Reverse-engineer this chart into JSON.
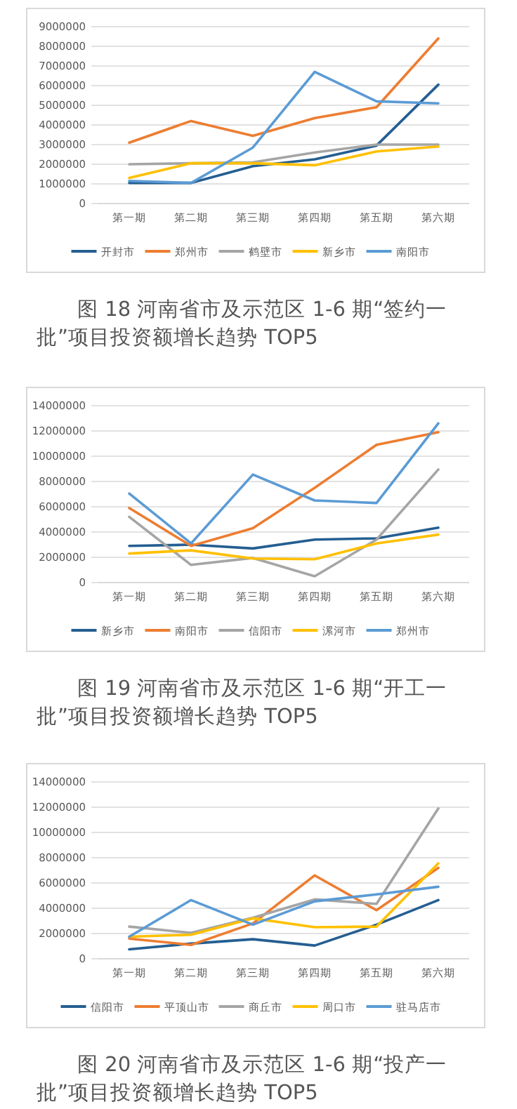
{
  "chart_data": [
    {
      "type": "line",
      "title": "图 18 河南省市及示范区 1-6 期“签约一批”项目投资额增长趋势 TOP5",
      "categories": [
        "第一期",
        "第二期",
        "第三期",
        "第四期",
        "第五期",
        "第六期"
      ],
      "ylim": [
        0,
        9000000
      ],
      "yticks": [
        0,
        1000000,
        2000000,
        3000000,
        4000000,
        5000000,
        6000000,
        7000000,
        8000000,
        9000000
      ],
      "grid": "y",
      "legend": "bottom",
      "marker": "none",
      "series": [
        {
          "name": "开封市",
          "color": "#255e91",
          "values": [
            1050000,
            1050000,
            1900000,
            2250000,
            2950000,
            6050000
          ]
        },
        {
          "name": "郑州市",
          "color": "#ed7d31",
          "values": [
            3100000,
            4200000,
            3450000,
            4350000,
            4900000,
            8400000
          ]
        },
        {
          "name": "鹤壁市",
          "color": "#a5a5a5",
          "values": [
            2000000,
            2050000,
            2100000,
            2600000,
            3000000,
            3000000
          ]
        },
        {
          "name": "新乡市",
          "color": "#ffc000",
          "values": [
            1300000,
            2050000,
            2050000,
            1950000,
            2650000,
            2900000
          ]
        },
        {
          "name": "南阳市",
          "color": "#5b9bd5",
          "values": [
            1150000,
            1050000,
            2850000,
            6700000,
            5200000,
            5100000
          ]
        }
      ]
    },
    {
      "type": "line",
      "title": "图 19 河南省市及示范区 1-6 期“开工一批”项目投资额增长趋势 TOP5",
      "categories": [
        "第一期",
        "第二期",
        "第三期",
        "第四期",
        "第五期",
        "第六期"
      ],
      "ylim": [
        0,
        14000000
      ],
      "yticks": [
        0,
        2000000,
        4000000,
        6000000,
        8000000,
        10000000,
        12000000,
        14000000
      ],
      "grid": "y",
      "legend": "bottom",
      "marker": "none",
      "series": [
        {
          "name": "新乡市",
          "color": "#255e91",
          "values": [
            2900000,
            3000000,
            2700000,
            3400000,
            3500000,
            4350000
          ]
        },
        {
          "name": "南阳市",
          "color": "#ed7d31",
          "values": [
            5900000,
            2900000,
            4300000,
            7500000,
            10900000,
            11900000
          ]
        },
        {
          "name": "信阳市",
          "color": "#a5a5a5",
          "values": [
            5200000,
            1400000,
            1950000,
            500000,
            3400000,
            8950000
          ]
        },
        {
          "name": "漯河市",
          "color": "#ffc000",
          "values": [
            2300000,
            2550000,
            1900000,
            1850000,
            3100000,
            3800000
          ]
        },
        {
          "name": "郑州市",
          "color": "#5b9bd5",
          "values": [
            7050000,
            3100000,
            8550000,
            6500000,
            6300000,
            12600000
          ]
        }
      ]
    },
    {
      "type": "line",
      "title": "图 20 河南省市及示范区 1-6 期“投产一批”项目投资额增长趋势 TOP5",
      "categories": [
        "第一期",
        "第二期",
        "第三期",
        "第四期",
        "第五期",
        "第六期"
      ],
      "ylim": [
        0,
        14000000
      ],
      "yticks": [
        0,
        2000000,
        4000000,
        6000000,
        8000000,
        10000000,
        12000000,
        14000000
      ],
      "grid": "y",
      "legend": "bottom",
      "marker": "none",
      "series": [
        {
          "name": "信阳市",
          "color": "#255e91",
          "values": [
            750000,
            1200000,
            1550000,
            1050000,
            2700000,
            4650000
          ]
        },
        {
          "name": "平顶山市",
          "color": "#ed7d31",
          "values": [
            1600000,
            1100000,
            2800000,
            6600000,
            3850000,
            7200000
          ]
        },
        {
          "name": "商丘市",
          "color": "#a5a5a5",
          "values": [
            2550000,
            2050000,
            3250000,
            4700000,
            4350000,
            11900000
          ]
        },
        {
          "name": "周口市",
          "color": "#ffc000",
          "values": [
            1750000,
            1900000,
            3200000,
            2500000,
            2550000,
            7550000
          ]
        },
        {
          "name": "驻马店市",
          "color": "#5b9bd5",
          "values": [
            1750000,
            4650000,
            2700000,
            4550000,
            5100000,
            5700000
          ]
        }
      ]
    }
  ]
}
